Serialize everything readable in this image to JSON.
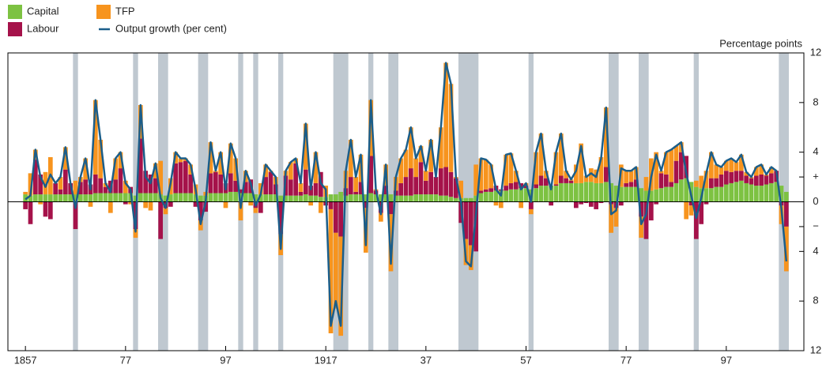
{
  "chart_data": {
    "type": "bar",
    "stacked": true,
    "unit_label": "Percentage points",
    "xlim": [
      1853.5,
      2012.5
    ],
    "ylim": [
      -12,
      12
    ],
    "xticks": [
      {
        "value": 1857,
        "label": "1857"
      },
      {
        "value": 1877,
        "label": "77"
      },
      {
        "value": 1897,
        "label": "97"
      },
      {
        "value": 1917,
        "label": "1917"
      },
      {
        "value": 1937,
        "label": "37"
      },
      {
        "value": 1957,
        "label": "57"
      },
      {
        "value": 1977,
        "label": "77"
      },
      {
        "value": 1997,
        "label": "97"
      }
    ],
    "yticks": [
      {
        "value": -12,
        "label": "12"
      },
      {
        "value": -8,
        "label": "8"
      },
      {
        "value": -4,
        "label": "4"
      },
      {
        "value": -2,
        "label": "−"
      },
      0,
      {
        "value": 2,
        "label": "+"
      },
      4,
      8,
      12
    ],
    "recession_color": "#bfc8d0",
    "recessions": [
      [
        1866.5,
        1867.5
      ],
      [
        1878.5,
        1879.5
      ],
      [
        1883.5,
        1885.5
      ],
      [
        1891.5,
        1893.5
      ],
      [
        1899.5,
        1900.5
      ],
      [
        1902.5,
        1903.5
      ],
      [
        1907.5,
        1908.5
      ],
      [
        1918.5,
        1921.5
      ],
      [
        1925.5,
        1926.5
      ],
      [
        1929.5,
        1931.5
      ],
      [
        1943.5,
        1947.5
      ],
      [
        1957.5,
        1958.5
      ],
      [
        1973.5,
        1975.5
      ],
      [
        1979.5,
        1981.5
      ],
      [
        1990.5,
        1991.5
      ],
      [
        2007.5,
        2009.5
      ]
    ],
    "x": [
      1857,
      1858,
      1859,
      1860,
      1861,
      1862,
      1863,
      1864,
      1865,
      1866,
      1867,
      1868,
      1869,
      1870,
      1871,
      1872,
      1873,
      1874,
      1875,
      1876,
      1877,
      1878,
      1879,
      1880,
      1881,
      1882,
      1883,
      1884,
      1885,
      1886,
      1887,
      1888,
      1889,
      1890,
      1891,
      1892,
      1893,
      1894,
      1895,
      1896,
      1897,
      1898,
      1899,
      1900,
      1901,
      1902,
      1903,
      1904,
      1905,
      1906,
      1907,
      1908,
      1909,
      1910,
      1911,
      1912,
      1913,
      1914,
      1915,
      1916,
      1917,
      1918,
      1919,
      1920,
      1921,
      1922,
      1923,
      1924,
      1925,
      1926,
      1927,
      1928,
      1929,
      1930,
      1931,
      1932,
      1933,
      1934,
      1935,
      1936,
      1937,
      1938,
      1939,
      1940,
      1941,
      1942,
      1943,
      1944,
      1945,
      1946,
      1947,
      1948,
      1949,
      1950,
      1951,
      1952,
      1953,
      1954,
      1955,
      1956,
      1957,
      1958,
      1959,
      1960,
      1961,
      1962,
      1963,
      1964,
      1965,
      1966,
      1967,
      1968,
      1969,
      1970,
      1971,
      1972,
      1973,
      1974,
      1975,
      1976,
      1977,
      1978,
      1979,
      1980,
      1981,
      1982,
      1983,
      1984,
      1985,
      1986,
      1987,
      1988,
      1989,
      1990,
      1991,
      1992,
      1993,
      1994,
      1995,
      1996,
      1997,
      1998,
      1999,
      2000,
      2001,
      2002,
      2003,
      2004,
      2005,
      2006,
      2007,
      2008,
      2009
    ],
    "series": [
      {
        "name": "Capital",
        "type": "bar",
        "color": "#7dc242",
        "values": [
          0.6,
          0.5,
          0.6,
          0.6,
          0.6,
          0.6,
          0.6,
          0.6,
          0.6,
          0.6,
          0.6,
          0.6,
          0.6,
          0.6,
          0.7,
          0.7,
          0.7,
          0.7,
          0.7,
          0.7,
          0.7,
          0.7,
          0.5,
          0.7,
          0.7,
          0.7,
          0.7,
          0.6,
          0.5,
          0.6,
          0.7,
          0.7,
          0.7,
          0.7,
          0.6,
          0.5,
          0.5,
          0.7,
          0.7,
          0.7,
          0.7,
          0.8,
          0.8,
          0.7,
          0.7,
          0.7,
          0.6,
          0.6,
          0.6,
          0.6,
          0.6,
          0.5,
          0.5,
          0.5,
          0.5,
          0.5,
          0.6,
          0.5,
          0.5,
          0.4,
          0.4,
          0.6,
          0.6,
          0.8,
          0.5,
          0.6,
          0.6,
          0.6,
          0.6,
          0.7,
          0.6,
          0.6,
          0.6,
          0.6,
          0.5,
          0.5,
          0.5,
          0.5,
          0.6,
          0.6,
          0.6,
          0.6,
          0.6,
          0.5,
          0.5,
          0.4,
          0.3,
          0.3,
          0.3,
          0.3,
          0.5,
          0.7,
          0.8,
          0.8,
          0.9,
          0.9,
          0.9,
          1.0,
          1.0,
          1.1,
          1.1,
          1.0,
          1.1,
          1.3,
          1.3,
          1.3,
          1.3,
          1.5,
          1.5,
          1.5,
          1.5,
          1.5,
          1.6,
          1.6,
          1.5,
          1.5,
          1.6,
          1.5,
          1.3,
          1.2,
          1.2,
          1.2,
          1.2,
          1.1,
          0.9,
          0.9,
          1.0,
          1.1,
          1.2,
          1.2,
          1.5,
          1.8,
          1.9,
          1.6,
          1.2,
          1.1,
          1.1,
          1.1,
          1.2,
          1.2,
          1.4,
          1.5,
          1.6,
          1.7,
          1.5,
          1.4,
          1.3,
          1.3,
          1.4,
          1.5,
          1.6,
          1.3,
          0.8
        ]
      },
      {
        "name": "Labour",
        "type": "bar",
        "color": "#a5124a",
        "values": [
          -0.6,
          -1.8,
          2.8,
          1.6,
          -1.2,
          -1.4,
          0.9,
          0.4,
          2.0,
          0.9,
          -2.2,
          1.0,
          1.2,
          0.8,
          1.5,
          1.2,
          0.5,
          1.0,
          1.1,
          2.0,
          -0.2,
          0.5,
          -2.2,
          4.4,
          1.8,
          1.5,
          1.2,
          -3.0,
          -0.5,
          -0.4,
          2.4,
          2.5,
          2.6,
          1.5,
          -0.4,
          -1.5,
          -0.8,
          1.6,
          1.7,
          1.5,
          0.8,
          1.5,
          0.9,
          0.3,
          0.9,
          1.1,
          -0.5,
          -0.9,
          1.4,
          1.8,
          0.8,
          -2.6,
          1.6,
          1.3,
          2.6,
          0.3,
          2.0,
          0.8,
          1.0,
          2.0,
          -0.3,
          -0.6,
          -2.5,
          -2.8,
          0.6,
          1.4,
          0.2,
          1.0,
          -0.5,
          3.0,
          0.3,
          -0.9,
          0.7,
          -1.0,
          0.4,
          1.0,
          1.5,
          2.2,
          1.4,
          2.6,
          1.1,
          1.8,
          1.4,
          2.2,
          2.3,
          2.0,
          1.6,
          -1.7,
          -3.0,
          -3.5,
          -4.0,
          0.2,
          0.2,
          0.3,
          0.4,
          0.1,
          0.4,
          0.5,
          0.6,
          0.4,
          0.2,
          -0.6,
          0.3,
          0.8,
          0.6,
          -0.3,
          0.1,
          0.6,
          0.4,
          0.2,
          -0.5,
          -0.2,
          -0.1,
          -0.4,
          -0.6,
          -0.1,
          1.2,
          -0.2,
          -0.5,
          -0.3,
          0.3,
          0.4,
          0.6,
          -1.2,
          -3.0,
          -1.5,
          -0.2,
          1.2,
          1.0,
          0.4,
          1.8,
          2.2,
          1.8,
          -0.3,
          -3.0,
          -1.8,
          -0.2,
          0.8,
          0.7,
          1.0,
          1.1,
          0.9,
          0.9,
          0.8,
          0.6,
          0.5,
          0.8,
          0.9,
          0.7,
          0.8,
          0.9,
          -0.3,
          -2.0
        ]
      },
      {
        "name": "TFP",
        "type": "bar",
        "color": "#f7941e",
        "values": [
          0.2,
          1.8,
          0.8,
          -0.2,
          1.8,
          3.0,
          0,
          1.0,
          1.8,
          0,
          1.1,
          0.4,
          1.7,
          -0.4,
          6.0,
          3.1,
          0.3,
          -0.9,
          1.7,
          1.3,
          1.0,
          -0.2,
          -0.7,
          2.7,
          -0.5,
          -0.7,
          1.2,
          2.7,
          -0.5,
          1.3,
          0.9,
          0.3,
          0.2,
          0.8,
          0.8,
          -0.8,
          0.3,
          2.5,
          0.1,
          1.8,
          -0.5,
          2.4,
          1.8,
          -1.5,
          0.9,
          -0.3,
          -0.4,
          0.9,
          1.0,
          0.1,
          0.6,
          -1.7,
          0.4,
          1.4,
          0.4,
          0.7,
          3.7,
          -0.3,
          2.5,
          -0.9,
          0.9,
          -10.0,
          -6.1,
          -8.0,
          1.4,
          3.0,
          1.2,
          2.2,
          -3.6,
          4.5,
          0.1,
          -0.7,
          1.7,
          -4.6,
          1.1,
          2.0,
          2.2,
          3.3,
          1.5,
          1.3,
          0.8,
          2.6,
          0,
          3.3,
          8.4,
          7.1,
          0.1,
          1.4,
          -2.1,
          -2.0,
          2.5,
          2.6,
          2.4,
          1.9,
          -0.3,
          -0.5,
          2.5,
          2.4,
          0.9,
          -0.5,
          0.2,
          -0.4,
          2.6,
          3.4,
          0.6,
          0,
          2.6,
          3.4,
          0.6,
          0.1,
          1.5,
          3.2,
          0.5,
          1.1,
          1.1,
          2.1,
          4.8,
          -2.3,
          -1.5,
          1.8,
          1.0,
          0.9,
          1.0,
          -1.7,
          1.1,
          2.6,
          3.0,
          0.2,
          1.8,
          2.6,
          1.2,
          0.8,
          -1.4,
          -0.8,
          0.5,
          1.0,
          1.4,
          2.1,
          1.1,
          0.6,
          0.8,
          1.1,
          0.7,
          1.3,
          0.3,
          0.1,
          0.7,
          0.8,
          0.1,
          0.5,
          0,
          -1.5,
          -3.6
        ]
      },
      {
        "name": "Output growth (per cent)",
        "type": "line",
        "color": "#1b5e8a",
        "values": [
          0.2,
          0.5,
          4.2,
          2.0,
          1.2,
          2.2,
          1.5,
          2.0,
          4.4,
          1.5,
          -0.5,
          2.0,
          3.5,
          1.0,
          8.2,
          5.0,
          1.5,
          0.8,
          3.5,
          4.0,
          1.5,
          1.0,
          -2.4,
          7.8,
          2.0,
          1.5,
          3.1,
          0.3,
          -0.5,
          1.5,
          4.0,
          3.5,
          3.5,
          3.0,
          1.0,
          -1.8,
          0.0,
          4.8,
          2.5,
          4.0,
          1.0,
          4.7,
          3.5,
          -0.5,
          2.5,
          1.5,
          -0.3,
          0.6,
          3.0,
          2.5,
          2.0,
          -3.8,
          2.5,
          3.2,
          3.5,
          1.5,
          6.3,
          1.0,
          4.0,
          1.5,
          1.0,
          -10.0,
          -8.0,
          -10.0,
          2.5,
          5.0,
          2.0,
          3.8,
          -3.5,
          8.2,
          1.0,
          -1.0,
          3.0,
          -5.0,
          2.0,
          3.5,
          4.2,
          6.0,
          3.5,
          4.5,
          2.5,
          5.0,
          2.0,
          6.0,
          11.2,
          9.5,
          2.0,
          0.0,
          -4.8,
          -5.2,
          -1.0,
          3.5,
          3.4,
          3.0,
          1.0,
          0.5,
          3.8,
          3.9,
          2.5,
          1.0,
          1.5,
          0.0,
          4.0,
          5.5,
          2.5,
          1.0,
          4.0,
          5.5,
          2.5,
          1.8,
          2.5,
          4.5,
          2.0,
          2.3,
          2.0,
          3.5,
          7.6,
          -1.0,
          -0.7,
          2.7,
          2.5,
          2.5,
          2.8,
          -1.8,
          -1.0,
          2.0,
          3.8,
          2.5,
          4.0,
          4.2,
          4.5,
          4.8,
          2.3,
          0.5,
          -1.3,
          0.3,
          2.3,
          4.0,
          3.0,
          2.8,
          3.3,
          3.5,
          3.2,
          3.8,
          2.4,
          2.0,
          2.8,
          3.0,
          2.2,
          2.8,
          2.5,
          -0.5,
          -4.8
        ]
      }
    ]
  }
}
